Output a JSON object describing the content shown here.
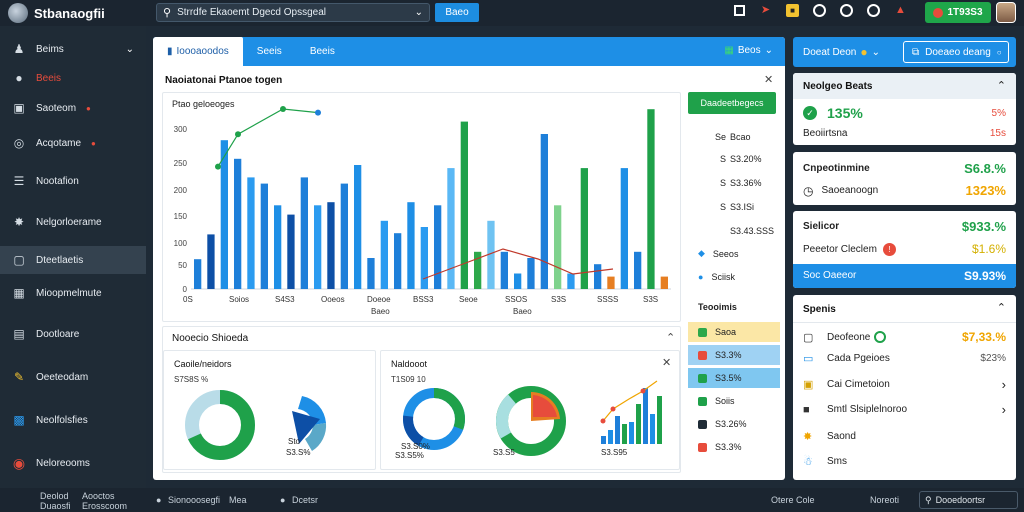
{
  "app": {
    "title": "Stbanaogfii"
  },
  "search": {
    "text": "Strrdfe Ekaoemt Dgecd Opssgeal",
    "button": "Baeo"
  },
  "topbar": {
    "badge": "1T93S3"
  },
  "sidebar": {
    "items": [
      {
        "label": "Beims",
        "icon": "user-icon"
      },
      {
        "label": "Beeis",
        "icon": "globe-icon"
      },
      {
        "label": "Saoteom",
        "icon": "monitor-icon"
      },
      {
        "label": "Acqotame",
        "icon": "target-icon"
      },
      {
        "label": "Nootafion",
        "icon": "list-icon"
      },
      {
        "label": "Nelgorloerame",
        "icon": "star-icon"
      },
      {
        "label": "Dteetlaetis",
        "icon": "clipboard-icon"
      },
      {
        "label": "Mioopmelmute",
        "icon": "calendar-icon"
      },
      {
        "label": "Dootloare",
        "icon": "document-icon"
      },
      {
        "label": "Oeeteodam",
        "icon": "pencil-icon"
      },
      {
        "label": "Neolfolsfies",
        "icon": "chart-icon"
      },
      {
        "label": "Neloreooms",
        "icon": "record-icon"
      }
    ]
  },
  "bottombar": {
    "left1": "Deolod",
    "left2": "Aooctos",
    "left3": "Duaosfi",
    "left4": "Erosscoom",
    "mid1": "Sionooosegfi",
    "mid2": "Mea",
    "mid3": "Dcetsr",
    "right1": "Otere Cole",
    "right2": "Noreoti",
    "search": "Dooedoortsr"
  },
  "tabs": [
    {
      "label": "Ioooaoodos"
    },
    {
      "label": "Seeis"
    },
    {
      "label": "Beeis"
    }
  ],
  "tab_right": "Beos",
  "panel_title": "Naoiatonai Ptanoe togen",
  "chart_card": {
    "header": "Ptao geloeoges"
  },
  "green_button": "Daadeetbegecs",
  "side_list": [
    {
      "label": "Se",
      "value": "Bcao"
    },
    {
      "label": "S",
      "value": "S3.20%"
    },
    {
      "label": "S",
      "value": "S3.36%"
    },
    {
      "label": "S",
      "value": "S3.ISi"
    },
    {
      "label": "",
      "value": "S3.43.SSS"
    },
    {
      "label": "Seeos",
      "value": ""
    },
    {
      "label": "Sciisk",
      "value": ""
    }
  ],
  "side_heading": "Teooimis",
  "side_colored": [
    {
      "label": "Saoa",
      "bg": "#fbe7a6",
      "sq": "#2da84b"
    },
    {
      "label": "S3.3%",
      "bg": "#9fd2f3",
      "sq": "#e74c3c"
    },
    {
      "label": "S3.5%",
      "bg": "#7fc7f0",
      "sq": "#1fa14a"
    },
    {
      "label": "Soiis",
      "bg": "#ffffff",
      "sq": "#1fa14a"
    },
    {
      "label": "S3.26%",
      "bg": "#ffffff",
      "sq": "#1f2b36"
    },
    {
      "label": "S3.3%",
      "bg": "#ffffff",
      "sq": "#e74c3c"
    }
  ],
  "bottom_card": {
    "title": "Nooecio Shioeda"
  },
  "donut_cards": [
    {
      "title": "Caoile/neidors",
      "sub": "S7S8S %",
      "label1": "Sto",
      "label2": "S3.S%"
    },
    {
      "title": "Naldooot",
      "sub": "T1S09 10",
      "label1": "S3.S0%",
      "label2": "S3.S5%",
      "label3": "S3.S5",
      "label4": "S3.S95"
    }
  ],
  "right": {
    "top_btn1": "Doeat Deon",
    "top_btn2": "Doeaeo deang",
    "card1": {
      "title": "Neolgeo Beats",
      "big": "135%",
      "sub": "Beoiirtsna",
      "v1": "5%",
      "v2": "15s"
    },
    "card2": {
      "title": "Cnpeotinmine",
      "v1": "S6.8.%",
      "sub": "Saoeanoogn",
      "v2": "1323%"
    },
    "card3": {
      "title": "Sielicor",
      "v1": "$933.%",
      "sub": "Peeetor Cleclem",
      "v2": "$1.6%",
      "bar": "Soc Oaeeor",
      "bar_v": "S9.93%"
    },
    "card4": {
      "title": "Spenis",
      "rows": [
        {
          "label": "Deofeone",
          "value": "$7,33.%",
          "color": "#f0a500"
        },
        {
          "label": "Cada Pgeioes",
          "value": "$23%",
          "color": "#555"
        },
        {
          "label": "Cai Cimetoion",
          "value": "",
          "color": "#555"
        },
        {
          "label": "Smtl Slsiplelnoroo",
          "value": "",
          "color": "#555"
        },
        {
          "label": "Saond",
          "value": "",
          "color": "#555"
        },
        {
          "label": "Sms",
          "value": "",
          "color": "#555"
        }
      ]
    }
  },
  "chart_data": {
    "type": "bar",
    "title": "",
    "ylim": [
      0,
      500
    ],
    "y_ticks": [
      "0",
      "50",
      "100",
      "150",
      "200",
      "250",
      "300"
    ],
    "x_tick_labels": [
      "0S",
      "Soios",
      "S4S3",
      "Ooeos",
      "Doeoe",
      "BSS3",
      "Seoe",
      "SSOS",
      "S3S",
      "SSSS",
      "S3S"
    ],
    "x_sublabels": [
      "Baeo",
      "Baeo"
    ],
    "bars": [
      {
        "v": 48,
        "c": "#1e7fd9"
      },
      {
        "v": 88,
        "c": "#0d4fa6"
      },
      {
        "v": 240,
        "c": "#1e8fe6"
      },
      {
        "v": 210,
        "c": "#1e7fd9"
      },
      {
        "v": 180,
        "c": "#2b9bf0"
      },
      {
        "v": 170,
        "c": "#1e7fd9"
      },
      {
        "v": 135,
        "c": "#1e8fe6"
      },
      {
        "v": 120,
        "c": "#0d4fa6"
      },
      {
        "v": 180,
        "c": "#1e7fd9"
      },
      {
        "v": 135,
        "c": "#2b9bf0"
      },
      {
        "v": 140,
        "c": "#0d4fa6"
      },
      {
        "v": 170,
        "c": "#1e7fd9"
      },
      {
        "v": 200,
        "c": "#1e8fe6"
      },
      {
        "v": 50,
        "c": "#1e7fd9"
      },
      {
        "v": 110,
        "c": "#2b9bf0"
      },
      {
        "v": 90,
        "c": "#1e7fd9"
      },
      {
        "v": 140,
        "c": "#1e8fe6"
      },
      {
        "v": 100,
        "c": "#2b9bf0"
      },
      {
        "v": 135,
        "c": "#1e7fd9"
      },
      {
        "v": 195,
        "c": "#5ab8f5"
      },
      {
        "v": 270,
        "c": "#1fa14a"
      },
      {
        "v": 60,
        "c": "#2ea84b"
      },
      {
        "v": 110,
        "c": "#6fc3f2"
      },
      {
        "v": 60,
        "c": "#1e7fd9"
      },
      {
        "v": 25,
        "c": "#1e8fe6"
      },
      {
        "v": 50,
        "c": "#1e7fd9"
      },
      {
        "v": 250,
        "c": "#1e7fd9"
      },
      {
        "v": 135,
        "c": "#7fd28d"
      },
      {
        "v": 25,
        "c": "#2b9bf0"
      },
      {
        "v": 195,
        "c": "#1fa14a"
      },
      {
        "v": 40,
        "c": "#1e7fd9"
      },
      {
        "v": 20,
        "c": "#e67e22"
      },
      {
        "v": 195,
        "c": "#1e8fe6"
      },
      {
        "v": 60,
        "c": "#1e7fd9"
      },
      {
        "v": 290,
        "c": "#1fa14a"
      },
      {
        "v": 20,
        "c": "#e67e22"
      }
    ],
    "green_line": [
      340,
      430,
      500,
      490
    ],
    "red_line": [
      0,
      30,
      60,
      40,
      10,
      20
    ]
  }
}
